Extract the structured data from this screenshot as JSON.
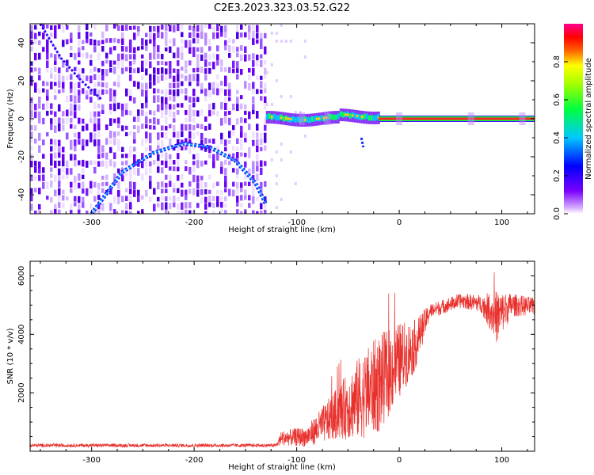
{
  "title": "C2E3.2023.323.03.52.G22",
  "chart_data": [
    {
      "type": "heatmap",
      "xlabel": "Height of straight line (km)",
      "ylabel": "Frequency (Hz)",
      "xlim": [
        -360,
        132
      ],
      "ylim": [
        -50,
        50
      ],
      "x_ticks": [
        -300,
        -200,
        -100,
        0,
        100
      ],
      "y_ticks": [
        -40,
        -20,
        0,
        20,
        40
      ],
      "colorbar": {
        "label": "Normalized spectral amplitude",
        "range": [
          0,
          1
        ],
        "ticks": [
          "0.0",
          "0.2",
          "0.4",
          "0.6",
          "0.8"
        ],
        "colors": [
          "#ffffff",
          "#7a00ff",
          "#0000ff",
          "#00c8ff",
          "#00ff00",
          "#ffff00",
          "#ff0000",
          "#ff0090"
        ]
      },
      "features": {
        "noise_region_x": [
          -360,
          -130
        ],
        "carrier_frequency_hz": 0,
        "carrier_onset_x": -130,
        "curved_trace": [
          [
            -300,
            -50
          ],
          [
            -270,
            -28
          ],
          [
            -240,
            -18
          ],
          [
            -210,
            -13
          ],
          [
            -185,
            -15
          ],
          [
            -160,
            -22
          ],
          [
            -140,
            -34
          ],
          [
            -130,
            -45
          ]
        ],
        "left_trace": [
          [
            -350,
            50
          ],
          [
            -330,
            32
          ],
          [
            -310,
            20
          ],
          [
            -290,
            10
          ]
        ],
        "spur_trace": [
          [
            -37,
            -10
          ],
          [
            -35,
            -15
          ]
        ]
      }
    },
    {
      "type": "line",
      "xlabel": "Height of straight line (km)",
      "ylabel": "SNR (10 * v/v)",
      "xlim": [
        -360,
        132
      ],
      "ylim": [
        0,
        6500
      ],
      "x_ticks": [
        -300,
        -200,
        -100,
        0,
        100
      ],
      "y_ticks": [
        2000,
        4000,
        6000
      ],
      "color": "#e8302c",
      "envelope": [
        {
          "x": -360,
          "base": 200,
          "amp": 60
        },
        {
          "x": -120,
          "base": 200,
          "amp": 60
        },
        {
          "x": -115,
          "base": 450,
          "amp": 250
        },
        {
          "x": -90,
          "base": 500,
          "amp": 350
        },
        {
          "x": -60,
          "base": 1300,
          "amp": 900
        },
        {
          "x": -40,
          "base": 1800,
          "amp": 1400
        },
        {
          "x": -20,
          "base": 2300,
          "amp": 1700
        },
        {
          "x": 0,
          "base": 3100,
          "amp": 1300
        },
        {
          "x": 15,
          "base": 3600,
          "amp": 900
        },
        {
          "x": 30,
          "base": 4800,
          "amp": 250
        },
        {
          "x": 60,
          "base": 5150,
          "amp": 250
        },
        {
          "x": 80,
          "base": 5050,
          "amp": 300
        },
        {
          "x": 95,
          "base": 4600,
          "amp": 900
        },
        {
          "x": 110,
          "base": 5000,
          "amp": 400
        },
        {
          "x": 132,
          "base": 4950,
          "amp": 300
        }
      ]
    }
  ]
}
